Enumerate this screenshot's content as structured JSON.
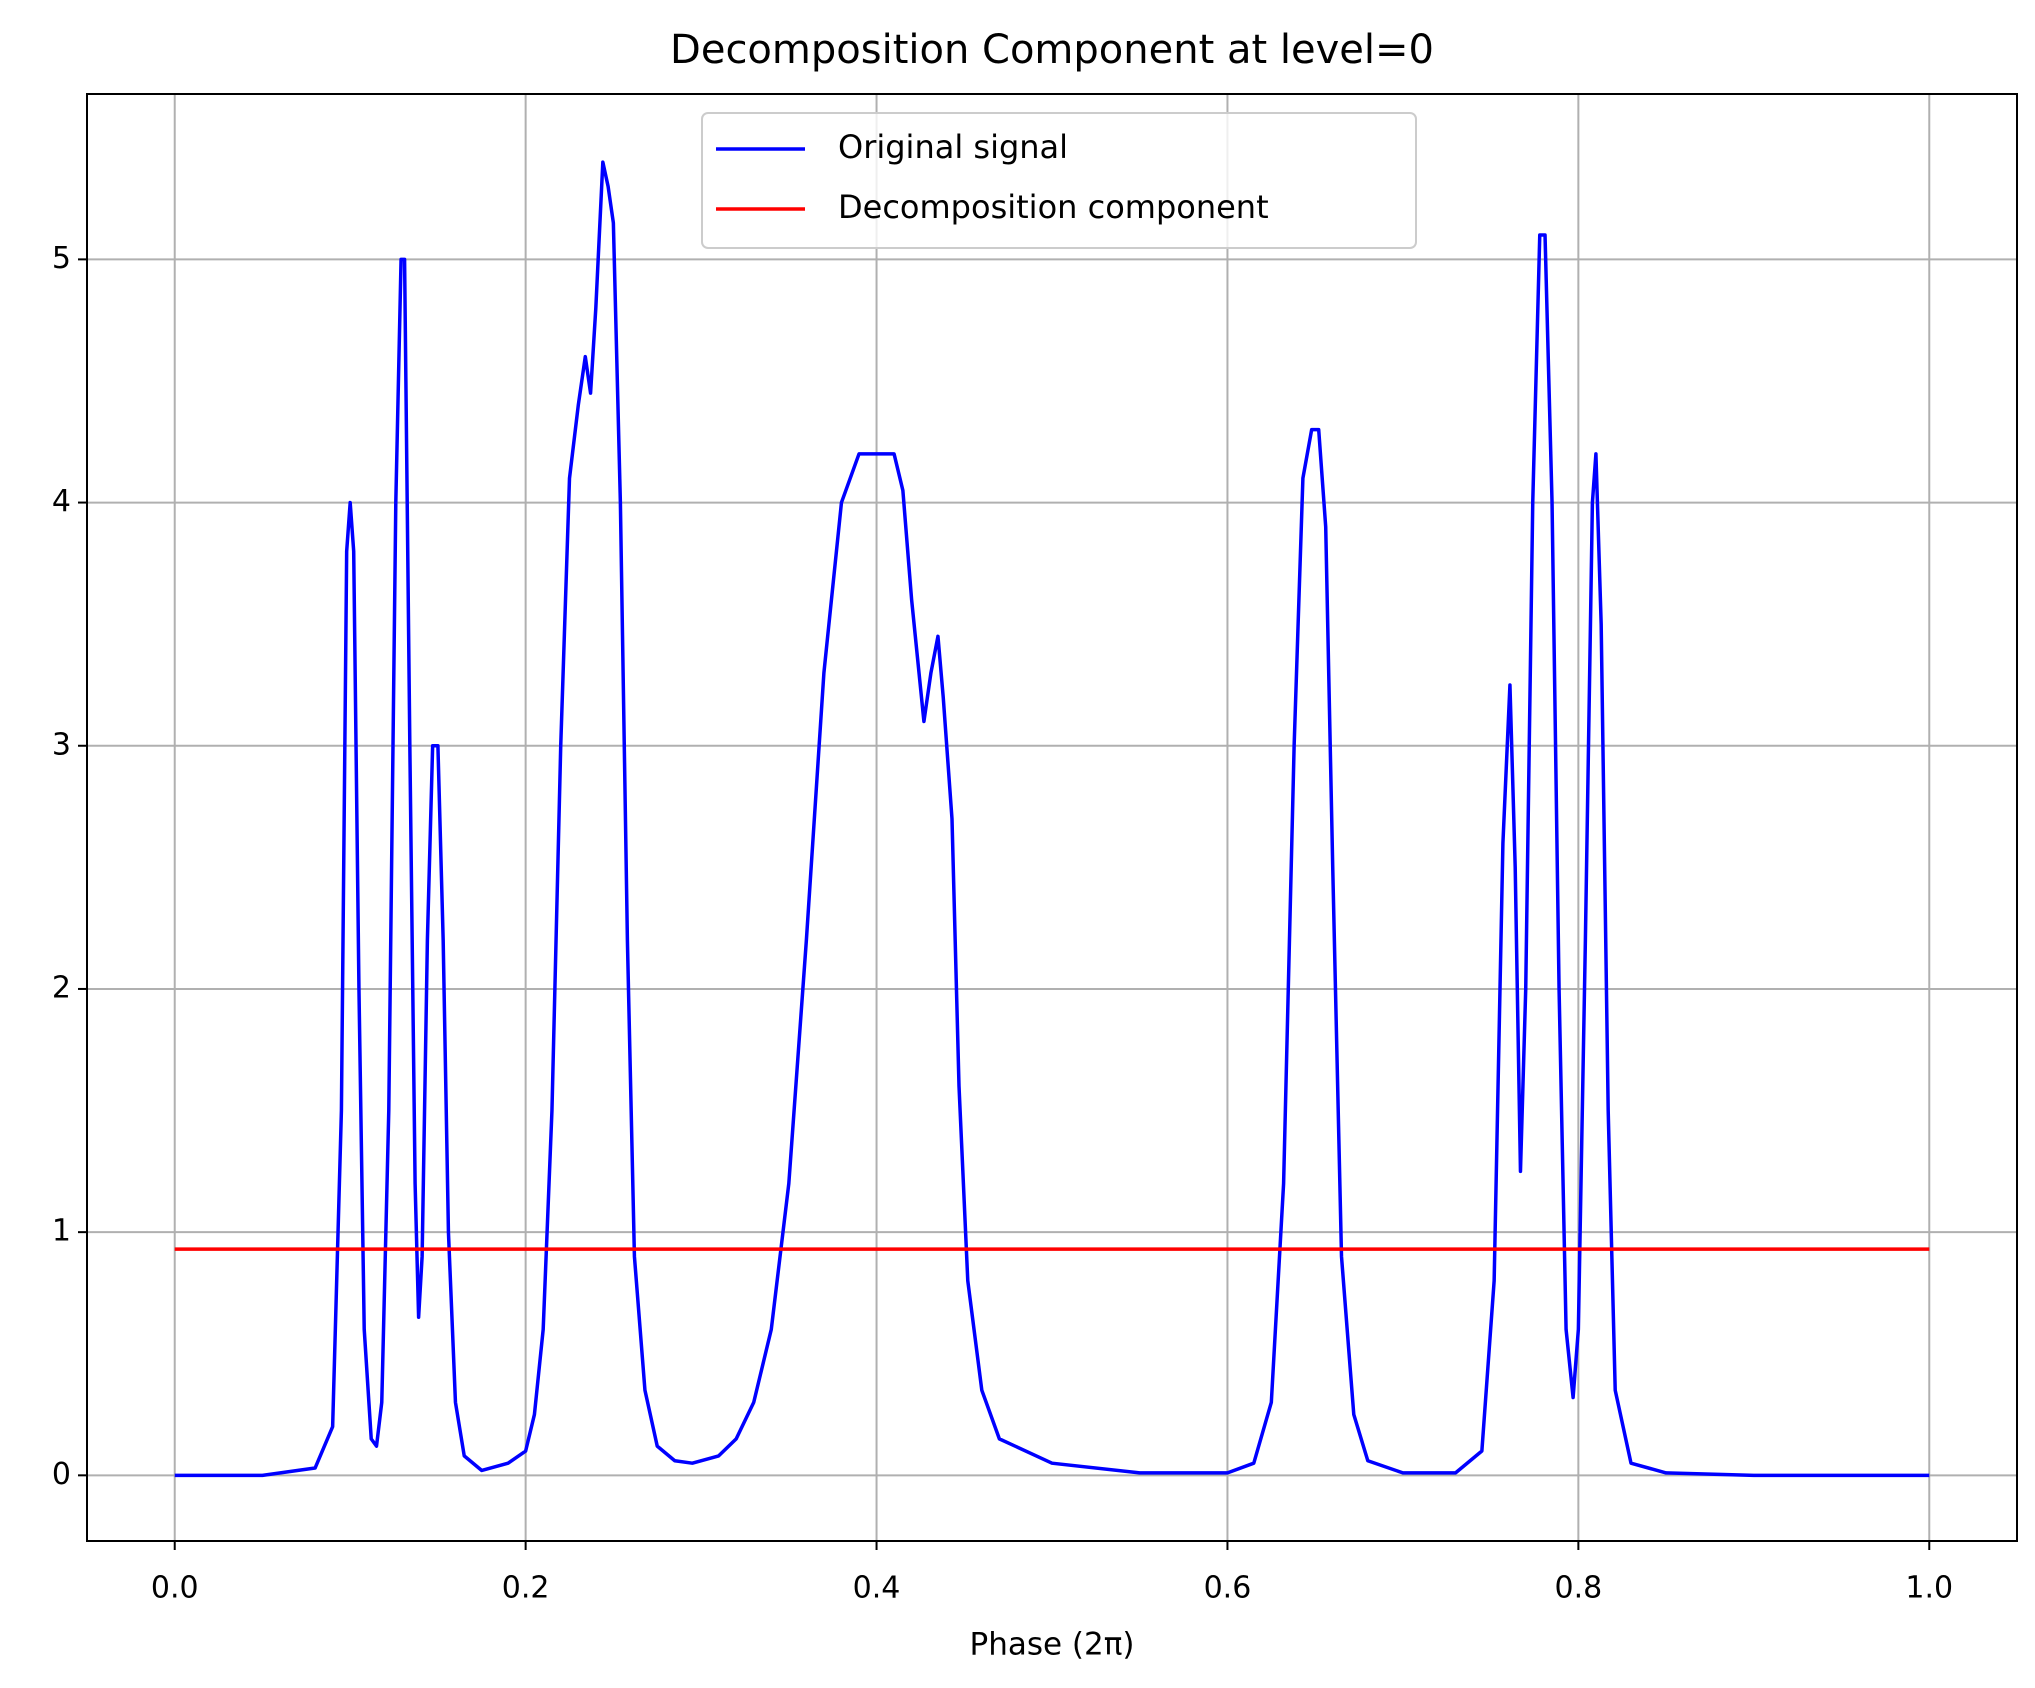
{
  "chart_data": {
    "type": "line",
    "title": "Decomposition Component at level=0",
    "xlabel": "Phase (2π)",
    "xlim": [
      -0.05,
      1.05
    ],
    "ylim": [
      -0.27,
      5.68
    ],
    "xticks": [
      {
        "value": 0,
        "label": "0.0"
      },
      {
        "value": 0.2,
        "label": "0.2"
      },
      {
        "value": 0.4,
        "label": "0.4"
      },
      {
        "value": 0.6,
        "label": "0.6"
      },
      {
        "value": 0.8,
        "label": "0.8"
      },
      {
        "value": 1,
        "label": "1.0"
      }
    ],
    "yticks": [
      0,
      1,
      2,
      3,
      4,
      5
    ],
    "grid": true,
    "legend": "upper center",
    "series": [
      {
        "name": "Original signal",
        "color": "#0000ff",
        "x": [
          0.0,
          0.05,
          0.08,
          0.09,
          0.095,
          0.098,
          0.1,
          0.102,
          0.105,
          0.108,
          0.112,
          0.115,
          0.118,
          0.122,
          0.126,
          0.129,
          0.131,
          0.134,
          0.137,
          0.139,
          0.141,
          0.144,
          0.147,
          0.15,
          0.153,
          0.156,
          0.16,
          0.165,
          0.175,
          0.19,
          0.2,
          0.205,
          0.21,
          0.215,
          0.22,
          0.225,
          0.23,
          0.234,
          0.237,
          0.24,
          0.244,
          0.247,
          0.25,
          0.254,
          0.258,
          0.262,
          0.268,
          0.275,
          0.285,
          0.295,
          0.31,
          0.32,
          0.33,
          0.34,
          0.35,
          0.36,
          0.37,
          0.38,
          0.39,
          0.4,
          0.41,
          0.415,
          0.42,
          0.427,
          0.431,
          0.435,
          0.438,
          0.443,
          0.447,
          0.452,
          0.46,
          0.47,
          0.5,
          0.55,
          0.6,
          0.615,
          0.625,
          0.632,
          0.638,
          0.643,
          0.648,
          0.652,
          0.656,
          0.66,
          0.665,
          0.672,
          0.68,
          0.7,
          0.73,
          0.745,
          0.752,
          0.757,
          0.761,
          0.764,
          0.767,
          0.77,
          0.774,
          0.778,
          0.781,
          0.785,
          0.789,
          0.793,
          0.797,
          0.8,
          0.804,
          0.808,
          0.81,
          0.813,
          0.817,
          0.821,
          0.83,
          0.85,
          0.9,
          1.0
        ],
        "values": [
          0,
          0,
          0.03,
          0.2,
          1.5,
          3.8,
          4.0,
          3.8,
          2.0,
          0.6,
          0.15,
          0.12,
          0.3,
          1.5,
          4.0,
          5.0,
          5.0,
          3.0,
          1.2,
          0.65,
          0.9,
          2.2,
          3.0,
          3.0,
          2.2,
          1.0,
          0.3,
          0.08,
          0.02,
          0.05,
          0.1,
          0.25,
          0.6,
          1.5,
          3.0,
          4.1,
          4.4,
          4.6,
          4.45,
          4.8,
          5.4,
          5.3,
          5.15,
          4.0,
          2.2,
          0.9,
          0.35,
          0.12,
          0.06,
          0.05,
          0.08,
          0.15,
          0.3,
          0.6,
          1.2,
          2.2,
          3.3,
          4.0,
          4.2,
          4.2,
          4.2,
          4.05,
          3.6,
          3.1,
          3.3,
          3.45,
          3.2,
          2.7,
          1.6,
          0.8,
          0.35,
          0.15,
          0.05,
          0.01,
          0.01,
          0.05,
          0.3,
          1.2,
          3.0,
          4.1,
          4.3,
          4.3,
          3.9,
          2.5,
          0.9,
          0.25,
          0.06,
          0.01,
          0.01,
          0.1,
          0.8,
          2.6,
          3.25,
          2.5,
          1.25,
          2.0,
          4.0,
          5.1,
          5.1,
          4.0,
          2.0,
          0.6,
          0.32,
          0.6,
          2.2,
          4.0,
          4.2,
          3.5,
          1.5,
          0.35,
          0.05,
          0.01,
          0,
          0
        ]
      },
      {
        "name": "Decomposition component",
        "color": "#ff0000",
        "x": [
          0,
          1
        ],
        "values": [
          0.93,
          0.93
        ]
      }
    ]
  }
}
